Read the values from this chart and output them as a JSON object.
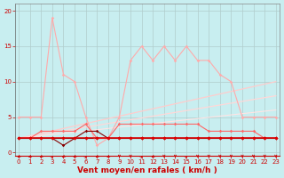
{
  "background_color": "#c8eef0",
  "xlabel": "Vent moyen/en rafales ( km/h )",
  "xlabel_color": "#cc0000",
  "xlabel_fontsize": 6.5,
  "yticks": [
    0,
    5,
    10,
    15,
    20
  ],
  "xticks": [
    0,
    1,
    2,
    3,
    4,
    5,
    6,
    7,
    8,
    9,
    10,
    11,
    12,
    13,
    14,
    15,
    16,
    17,
    18,
    19,
    20,
    21,
    22,
    23
  ],
  "tick_color": "#cc0000",
  "tick_fontsize": 5.0,
  "grid_color": "#b0cccc",
  "xlim": [
    -0.3,
    23.3
  ],
  "ylim": [
    -0.5,
    21
  ],
  "series": [
    {
      "x": [
        0,
        1,
        2,
        3,
        4,
        5,
        6,
        7,
        8,
        9,
        10,
        11,
        12,
        13,
        14,
        15,
        16,
        17,
        18,
        19,
        20,
        21,
        22,
        23
      ],
      "y": [
        5,
        5,
        5,
        19,
        11,
        10,
        5,
        1,
        2,
        5,
        13,
        15,
        13,
        15,
        13,
        15,
        13,
        13,
        11,
        10,
        5,
        5,
        5,
        5
      ],
      "color": "#ffaaaa",
      "linewidth": 0.8,
      "marker": "D",
      "markersize": 1.8,
      "zorder": 3
    },
    {
      "x": [
        0,
        1,
        2,
        3,
        4,
        5,
        6,
        7,
        8,
        9,
        10,
        11,
        12,
        13,
        14,
        15,
        16,
        17,
        18,
        19,
        20,
        21,
        22,
        23
      ],
      "y": [
        2,
        2,
        3,
        3,
        3,
        3,
        4,
        2,
        2,
        4,
        4,
        4,
        4,
        4,
        4,
        4,
        4,
        3,
        3,
        3,
        3,
        3,
        2,
        2
      ],
      "color": "#ff6666",
      "linewidth": 0.8,
      "marker": "D",
      "markersize": 1.8,
      "zorder": 4
    },
    {
      "x": [
        0,
        1,
        2,
        3,
        4,
        5,
        6,
        7,
        8,
        9,
        10,
        11,
        12,
        13,
        14,
        15,
        16,
        17,
        18,
        19,
        20,
        21,
        22,
        23
      ],
      "y": [
        2,
        2,
        2,
        2,
        2,
        2,
        2,
        2,
        2,
        2,
        2,
        2,
        2,
        2,
        2,
        2,
        2,
        2,
        2,
        2,
        2,
        2,
        2,
        2
      ],
      "color": "#dd0000",
      "linewidth": 1.1,
      "marker": "D",
      "markersize": 2.2,
      "zorder": 5
    },
    {
      "x": [
        0,
        1,
        2,
        3,
        4,
        5,
        6,
        7,
        8,
        9,
        10,
        11,
        12,
        13,
        14,
        15,
        16,
        17,
        18,
        19,
        20,
        21,
        22,
        23
      ],
      "y": [
        2,
        2,
        2,
        2,
        1,
        2,
        3,
        3,
        2,
        2,
        2,
        2,
        2,
        2,
        2,
        2,
        2,
        2,
        2,
        2,
        2,
        2,
        2,
        2
      ],
      "color": "#880000",
      "linewidth": 0.8,
      "marker": "D",
      "markersize": 1.8,
      "zorder": 4
    },
    {
      "x": [
        0,
        1,
        2,
        3,
        4,
        5,
        6,
        7,
        8,
        9,
        10,
        11,
        12,
        13,
        14,
        15,
        16,
        17,
        18,
        19,
        20,
        21,
        22,
        23
      ],
      "y": [
        2,
        2,
        2,
        2,
        2,
        2,
        2,
        2,
        2,
        2,
        2,
        2,
        2,
        2,
        2,
        2,
        2,
        2,
        2,
        2,
        2,
        2,
        2,
        2
      ],
      "color": "#220000",
      "linewidth": 0.8,
      "marker": null,
      "markersize": 0,
      "zorder": 2
    },
    {
      "x": [
        0,
        23
      ],
      "y": [
        2,
        10
      ],
      "color": "#ffcccc",
      "linewidth": 0.9,
      "marker": null,
      "markersize": 0,
      "zorder": 2
    },
    {
      "x": [
        0,
        23
      ],
      "y": [
        2,
        8
      ],
      "color": "#ffd8d8",
      "linewidth": 0.9,
      "marker": null,
      "markersize": 0,
      "zorder": 2
    },
    {
      "x": [
        0,
        23
      ],
      "y": [
        2,
        6
      ],
      "color": "#ffe4e4",
      "linewidth": 0.8,
      "marker": null,
      "markersize": 0,
      "zorder": 2
    }
  ],
  "arrow_angles": [
    225,
    225,
    225,
    45,
    225,
    225,
    45,
    225,
    225,
    270,
    270,
    45,
    225,
    270,
    270,
    45,
    270,
    270,
    270,
    270,
    270,
    270,
    270,
    270
  ],
  "arrow_color": "#cc0000"
}
